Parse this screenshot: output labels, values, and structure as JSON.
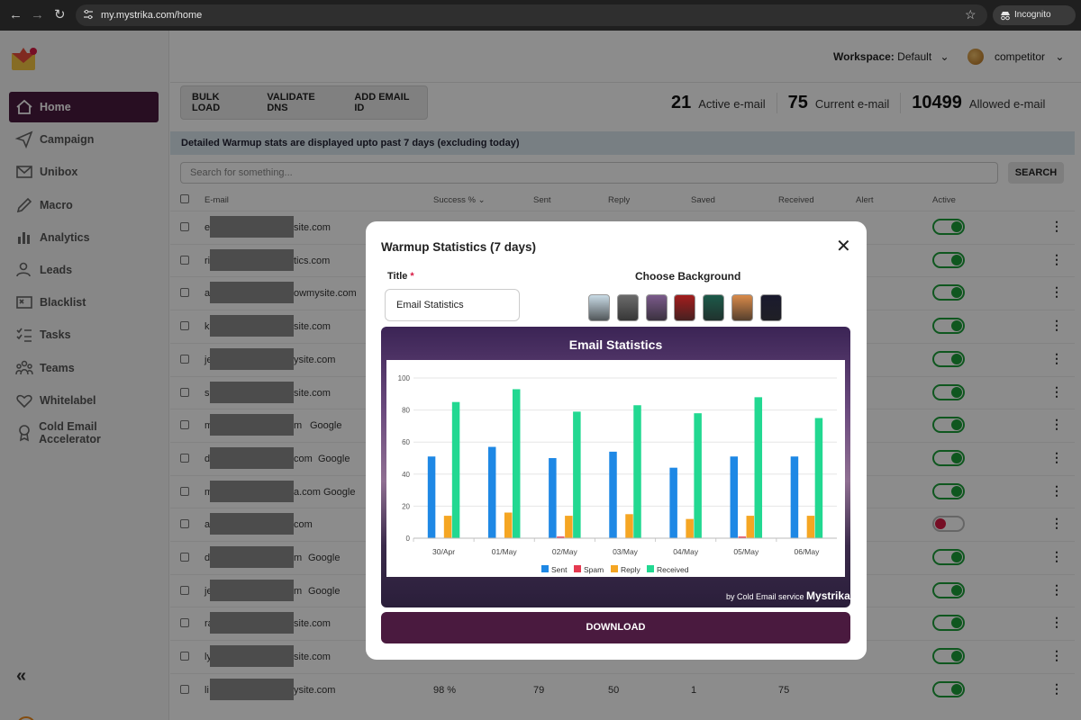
{
  "browser": {
    "url": "my.mystrika.com/home",
    "incognito_label": "Incognito"
  },
  "workspace": {
    "label": "Workspace:",
    "value": "Default"
  },
  "user": {
    "name": "competitor"
  },
  "sidebar": {
    "items": [
      {
        "label": "Home",
        "icon": "home-icon",
        "active": true
      },
      {
        "label": "Campaign",
        "icon": "send-icon"
      },
      {
        "label": "Unibox",
        "icon": "inbox-icon"
      },
      {
        "label": "Macro",
        "icon": "pencil-icon"
      },
      {
        "label": "Analytics",
        "icon": "bar-chart-icon"
      },
      {
        "label": "Leads",
        "icon": "user-star-icon"
      },
      {
        "label": "Blacklist",
        "icon": "blocked-card-icon"
      },
      {
        "label": "Tasks",
        "icon": "checklist-icon"
      },
      {
        "label": "Teams",
        "icon": "team-icon"
      },
      {
        "label": "Whitelabel",
        "icon": "heart-icon"
      },
      {
        "label": "Cold Email Accelerator",
        "icon": "badge-icon"
      }
    ],
    "collapse_glyph": "«",
    "footer_logo_letter": "f"
  },
  "toolbar": {
    "bulk_load": "BULK LOAD",
    "validate_dns": "VALIDATE DNS",
    "add_email": "ADD EMAIL ID"
  },
  "stats": [
    {
      "value": "21",
      "label": "Active e-mail"
    },
    {
      "value": "75",
      "label": "Current e-mail"
    },
    {
      "value": "10499",
      "label": "Allowed e-mail"
    }
  ],
  "banner": "Detailed Warmup stats are displayed upto past 7 days (excluding today)",
  "search": {
    "placeholder": "Search for something...",
    "button": "SEARCH"
  },
  "table": {
    "headers": {
      "email": "E-mail",
      "success": "Success %",
      "sent": "Sent",
      "reply": "Reply",
      "saved": "Saved",
      "received": "Received",
      "alert": "Alert",
      "active": "Active"
    },
    "rows": [
      {
        "start": "e",
        "end": "site.com",
        "provider": "",
        "active": true
      },
      {
        "start": "ri",
        "end": "tics.com",
        "provider": "",
        "active": true
      },
      {
        "start": "a",
        "end": "owmysite.com",
        "provider": "",
        "active": true
      },
      {
        "start": "k",
        "end": "site.com",
        "provider": "",
        "active": true
      },
      {
        "start": "je",
        "end": "ysite.com",
        "provider": "",
        "active": true
      },
      {
        "start": "s",
        "end": "site.com",
        "provider": "",
        "active": true
      },
      {
        "start": "m",
        "end": "m",
        "provider": "Google",
        "active": true
      },
      {
        "start": "d",
        "end": "com",
        "provider": "Google",
        "active": true
      },
      {
        "start": "m",
        "end": "a.com",
        "provider": "Google",
        "active": true
      },
      {
        "start": "a",
        "end": "com",
        "provider": "",
        "active": false
      },
      {
        "start": "d",
        "end": "m",
        "provider": "Google",
        "active": true
      },
      {
        "start": "je",
        "end": "m",
        "provider": "Google",
        "active": true
      },
      {
        "start": "ra",
        "end": "site.com",
        "provider": "",
        "active": true
      },
      {
        "start": "ly",
        "end": "site.com",
        "provider": "",
        "active": true
      },
      {
        "start": "li",
        "end": "ysite.com",
        "provider": "",
        "active": true,
        "success": "98 %",
        "sent": "79",
        "reply": "50",
        "saved": "1",
        "received": "75"
      }
    ]
  },
  "modal": {
    "title": "Warmup Statistics (7 days)",
    "title_field_label": "Title",
    "required_mark": "*",
    "title_value": "Email Statistics",
    "choose_background": "Choose Background",
    "backgrounds": [
      "#c9dbe6",
      "#6b6b6b",
      "#7a5a8a",
      "#a31d1d",
      "#1c5a4a",
      "#d98a4a",
      "#1a1a2e"
    ],
    "credit_prefix": "by Cold Email service",
    "credit_brand": "Mystrika",
    "download": "DOWNLOAD"
  },
  "chart_data": {
    "type": "bar",
    "title": "Email Statistics",
    "categories": [
      "30/Apr",
      "01/May",
      "02/May",
      "03/May",
      "04/May",
      "05/May",
      "06/May"
    ],
    "ylim": [
      0,
      100
    ],
    "yticks": [
      0,
      20,
      40,
      60,
      80,
      100
    ],
    "grid": true,
    "legend_position": "bottom",
    "series": [
      {
        "name": "Sent",
        "color": "#1e88e5",
        "values": [
          51,
          57,
          50,
          54,
          44,
          51,
          51
        ]
      },
      {
        "name": "Spam",
        "color": "#e53950",
        "values": [
          0,
          0,
          1,
          0,
          0,
          1,
          0
        ]
      },
      {
        "name": "Reply",
        "color": "#f5a623",
        "values": [
          14,
          16,
          14,
          15,
          12,
          14,
          14
        ]
      },
      {
        "name": "Received",
        "color": "#22d891",
        "values": [
          85,
          93,
          79,
          83,
          78,
          88,
          75
        ]
      }
    ]
  }
}
